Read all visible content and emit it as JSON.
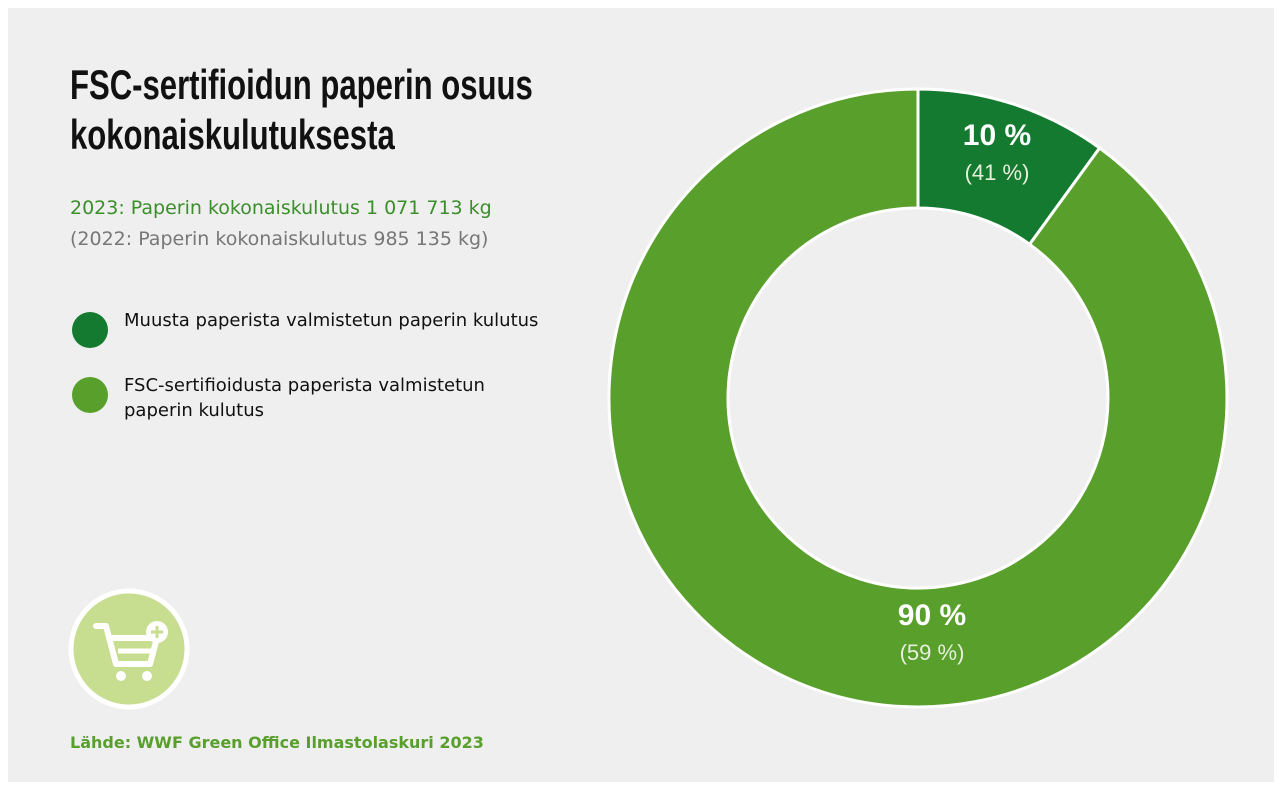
{
  "chart_data": {
    "type": "donut",
    "title": [
      "FSC-sertifioidun paperin osuus",
      "kokonaiskulutuksesta"
    ],
    "subtitle": [
      "2023: Paperin kokonaiskulutus 1 071 713 kg",
      "(2022: Paperin kokonaiskulutus 985 135 kg)"
    ],
    "source": "Lähde: WWF Green Office Ilmastolaskuri 2023",
    "categories": [
      "Muusta paperista valmistetun paperin kulutus",
      "FSC-sertifioidusta paperista valmistetun paperin kulutus"
    ],
    "values": [
      10,
      90
    ],
    "value_labels": [
      "10 %",
      "90 %"
    ],
    "previous_values": [
      41,
      59
    ],
    "previous_value_labels": [
      "(41 %)",
      "(59 %)"
    ],
    "colors": [
      "#137a2f",
      "#589f2b"
    ]
  }
}
